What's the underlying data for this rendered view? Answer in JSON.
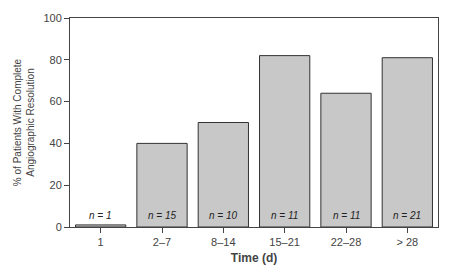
{
  "chart_data": {
    "type": "bar",
    "categories": [
      "1",
      "2–7",
      "8–14",
      "15–21",
      "22–28",
      "> 28"
    ],
    "values": [
      1,
      40,
      50,
      82,
      64,
      81
    ],
    "annotations": [
      "n = 1",
      "n = 15",
      "n = 10",
      "n = 11",
      "n = 11",
      "n = 21"
    ],
    "color": "#c8c8c8",
    "xlabel": "Time (d)",
    "ylabel": "% of Patients With Complete\nAngiographic Resolution",
    "ylim": [
      0,
      100
    ],
    "yticks": [
      0,
      20,
      40,
      60,
      80,
      100
    ],
    "grid": false
  }
}
